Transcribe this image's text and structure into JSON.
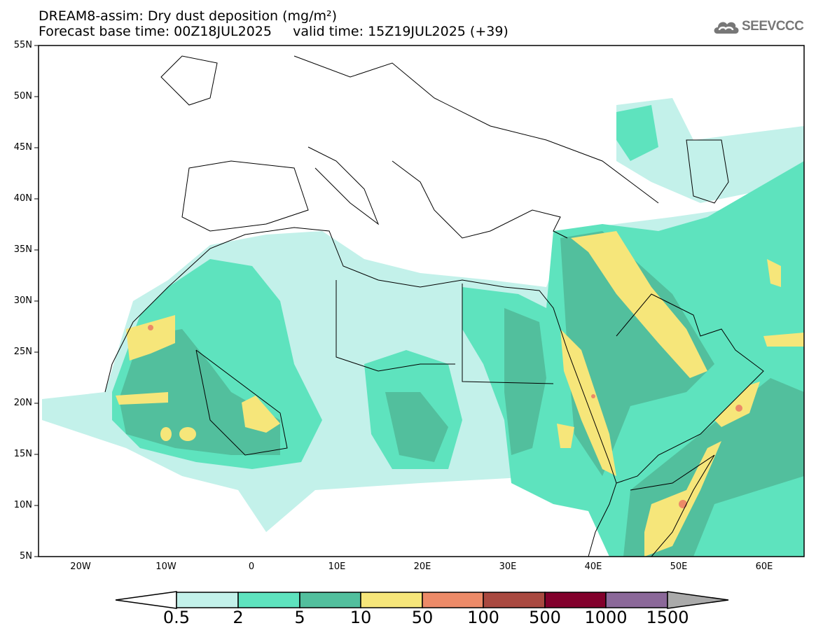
{
  "header": {
    "title": "DREAM8-assim: Dry dust deposition (mg/m²)",
    "subtitle": "Forecast base time: 00Z18JUL2025     valid time: 15Z19JUL2025 (+39)",
    "logo_text": "SEEVCCC",
    "logo_icon": "cloud-icon"
  },
  "axes": {
    "lat_labels": [
      "55N",
      "50N",
      "45N",
      "40N",
      "35N",
      "30N",
      "25N",
      "20N",
      "15N",
      "10N",
      "5N"
    ],
    "lon_labels": [
      "20W",
      "10W",
      "0",
      "10E",
      "20E",
      "30E",
      "40E",
      "50E",
      "60E"
    ]
  },
  "colorbar": {
    "labels": [
      "0.5",
      "2",
      "5",
      "10",
      "50",
      "100",
      "500",
      "1000",
      "1500"
    ],
    "colors": [
      "#ffffff",
      "#c3f1ea",
      "#5ee3be",
      "#52bf9d",
      "#f6e67a",
      "#ec8a68",
      "#a94940",
      "#82002c",
      "#8b6899",
      "#aaaaaa"
    ]
  }
}
